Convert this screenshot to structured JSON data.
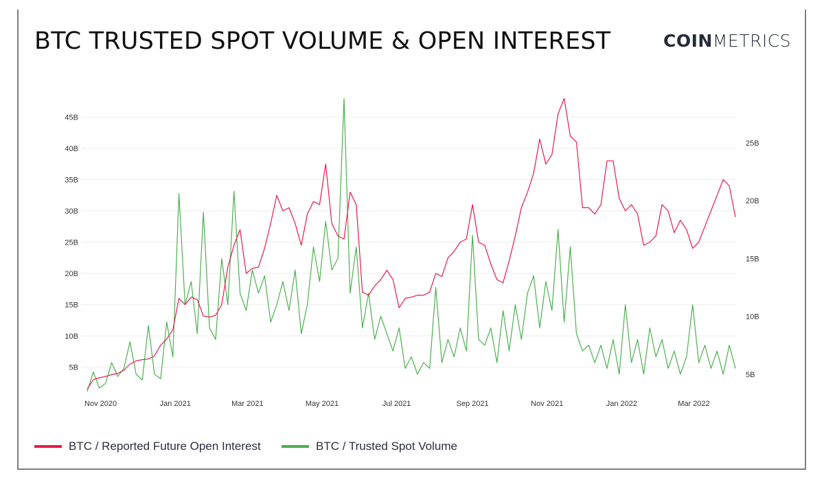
{
  "header": {
    "title": "BTC TRUSTED SPOT VOLUME & OPEN INTEREST",
    "logo_bold": "COIN",
    "logo_light": "METRICS"
  },
  "colors": {
    "open_interest": "#e8194a",
    "spot_volume": "#4caf50",
    "grid": "#eeeeee"
  },
  "chart_data": {
    "type": "line",
    "title": "BTC TRUSTED SPOT VOLUME & OPEN INTEREST",
    "x_start": "2020-10-21",
    "interval_days": 5,
    "x_ticks": [
      {
        "label": "Nov 2020",
        "date": "2020-11-01"
      },
      {
        "label": "Jan 2021",
        "date": "2021-01-01"
      },
      {
        "label": "Mar 2021",
        "date": "2021-03-01"
      },
      {
        "label": "May 2021",
        "date": "2021-05-01"
      },
      {
        "label": "Jul 2021",
        "date": "2021-07-01"
      },
      {
        "label": "Sep 2021",
        "date": "2021-09-01"
      },
      {
        "label": "Nov 2021",
        "date": "2021-11-01"
      },
      {
        "label": "Jan 2022",
        "date": "2022-01-01"
      },
      {
        "label": "Mar 2022",
        "date": "2022-03-01"
      }
    ],
    "y_left": {
      "ticks": [
        5,
        10,
        15,
        20,
        25,
        30,
        35,
        40,
        45
      ],
      "tick_labels": [
        "5B",
        "10B",
        "15B",
        "20B",
        "25B",
        "30B",
        "35B",
        "40B",
        "45B"
      ],
      "range": [
        0,
        50
      ],
      "unit": "B USD"
    },
    "y_right": {
      "ticks": [
        5,
        10,
        15,
        20,
        25
      ],
      "tick_labels": [
        "5B",
        "10B",
        "15B",
        "20B",
        "25B"
      ],
      "range": [
        0,
        30
      ],
      "unit": "B USD"
    },
    "grid": true,
    "legend_position": "bottom-left",
    "series": [
      {
        "name": "BTC / Reported Future Open Interest",
        "axis": "left",
        "values": [
          1.5,
          3.0,
          3.3,
          3.5,
          3.8,
          4.0,
          4.5,
          5.5,
          6.0,
          6.2,
          6.3,
          6.8,
          8.5,
          9.5,
          11,
          16,
          15,
          16.2,
          15.8,
          13.2,
          13,
          13.3,
          15,
          21,
          24.5,
          27,
          20,
          20.8,
          21,
          24,
          28,
          32.5,
          30,
          30.5,
          28,
          24.5,
          29.5,
          31.5,
          31,
          37.5,
          28,
          26,
          25.5,
          33,
          31,
          17,
          16.5,
          18,
          19,
          20.5,
          19,
          14.5,
          16,
          16.2,
          16.5,
          16.5,
          17,
          20,
          19.5,
          22.5,
          23.5,
          25,
          25.5,
          31,
          25,
          24.5,
          21.5,
          19,
          18.5,
          22,
          26,
          30.5,
          33,
          36,
          41.5,
          37.5,
          39,
          45.5,
          48,
          42,
          41,
          30.5,
          30.5,
          29.5,
          31,
          38,
          38,
          32,
          30,
          31,
          29.5,
          24.5,
          25,
          26,
          31,
          30,
          26.5,
          28.5,
          27,
          24,
          25,
          27.5,
          30,
          32.5,
          35,
          34,
          29
        ]
      },
      {
        "name": "BTC / Trusted Spot Volume",
        "axis": "right",
        "values": [
          3.5,
          5.2,
          3.8,
          4.2,
          6.0,
          4.8,
          5.5,
          7.8,
          5.0,
          4.5,
          9.2,
          5.0,
          4.6,
          9.5,
          6.5,
          20.6,
          11,
          13,
          8.5,
          19,
          9,
          8,
          15,
          11,
          20.8,
          12,
          10.5,
          14,
          12,
          13.5,
          9.5,
          11,
          13,
          10.5,
          14,
          8.5,
          11,
          16,
          13,
          18.2,
          14,
          15,
          28.8,
          12,
          16,
          9,
          12,
          8,
          10,
          8.5,
          7,
          9,
          5.5,
          6.5,
          5,
          6,
          5.5,
          12.5,
          6,
          8,
          6.5,
          9,
          7,
          17,
          8,
          7.5,
          9,
          6,
          10.5,
          7,
          11,
          8,
          12,
          13.5,
          9,
          13,
          10.5,
          17.5,
          9.5,
          16,
          8.5,
          7,
          7.5,
          6,
          7.5,
          5.5,
          8,
          5,
          11,
          6,
          8,
          5,
          9,
          6.5,
          8,
          5.5,
          7,
          5,
          6.5,
          11,
          6,
          7.5,
          5.5,
          7,
          5,
          7.5,
          5.5
        ]
      }
    ]
  },
  "legend": [
    {
      "label": "BTC / Reported Future Open Interest"
    },
    {
      "label": "BTC / Trusted Spot Volume"
    }
  ]
}
